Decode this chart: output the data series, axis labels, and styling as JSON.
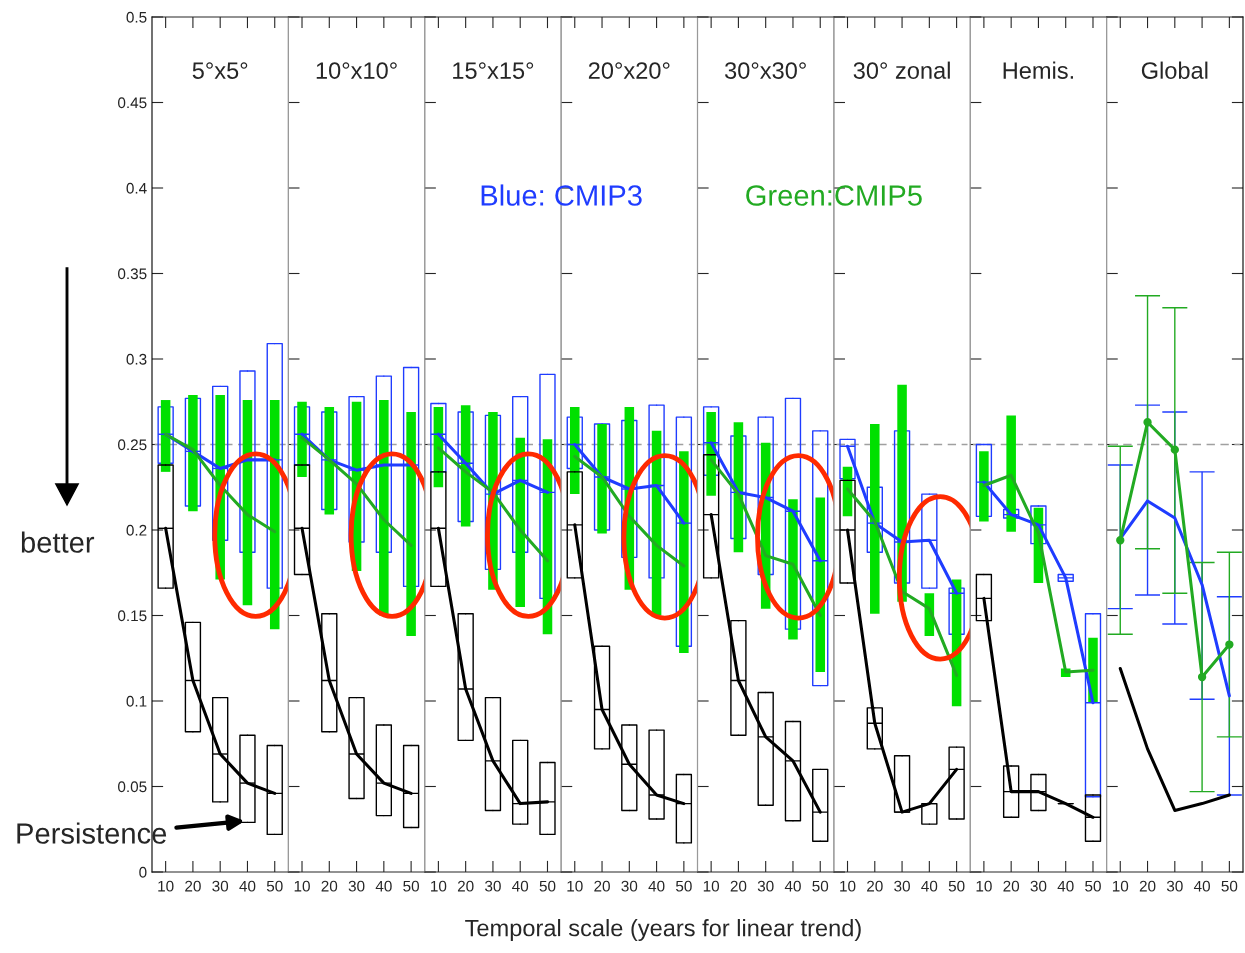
{
  "chart_data": [
    {
      "type": "box",
      "title": "5°x5°",
      "categories": [
        "10",
        "20",
        "30",
        "40",
        "50"
      ],
      "ylim": [
        0,
        0.5
      ],
      "yticks": [
        0,
        0.05,
        0.1,
        0.15,
        0.2,
        0.25,
        0.3,
        0.35,
        0.4,
        0.45,
        0.5
      ],
      "ref_lines": [
        {
          "axis": "y",
          "value": 0.25,
          "color": "#a0a0a0",
          "line_style": "dashed"
        }
      ],
      "annotations": [
        {
          "text": "Persistence",
          "x": "40",
          "y": 0.03
        },
        "better"
      ],
      "series": [
        {
          "type": "box",
          "color": "#1f3cff",
          "boxes": [
            {
              "low": 0.239,
              "q1": 0.239,
              "median": 0.256,
              "q3": 0.272,
              "high": 0.272
            },
            {
              "low": 0.214,
              "q1": 0.214,
              "median": 0.246,
              "q3": 0.277,
              "high": 0.277
            },
            {
              "low": 0.194,
              "q1": 0.194,
              "median": 0.236,
              "q3": 0.284,
              "high": 0.284
            },
            {
              "low": 0.187,
              "q1": 0.187,
              "median": 0.241,
              "q3": 0.293,
              "high": 0.293
            },
            {
              "low": 0.166,
              "q1": 0.166,
              "median": 0.241,
              "q3": 0.309,
              "high": 0.309
            }
          ]
        },
        {
          "type": "bar",
          "color": "#00e000",
          "base": [
            0.234,
            0.211,
            0.171,
            0.156,
            0.142
          ],
          "values": [
            0.042,
            0.068,
            0.108,
            0.12,
            0.134
          ]
        },
        {
          "type": "box",
          "color": "#000000",
          "boxes": [
            {
              "low": 0.166,
              "q1": 0.166,
              "median": 0.201,
              "q3": 0.238,
              "high": 0.238
            },
            {
              "low": 0.082,
              "q1": 0.082,
              "median": 0.112,
              "q3": 0.146,
              "high": 0.146
            },
            {
              "low": 0.041,
              "q1": 0.041,
              "median": 0.069,
              "q3": 0.102,
              "high": 0.102
            },
            {
              "low": 0.029,
              "q1": 0.029,
              "median": 0.052,
              "q3": 0.08,
              "high": 0.08
            },
            {
              "low": 0.022,
              "q1": 0.022,
              "median": 0.046,
              "q3": 0.074,
              "high": 0.074
            }
          ]
        },
        {
          "type": "line",
          "color": "#1f3cff",
          "values": [
            0.256,
            0.246,
            0.236,
            0.241,
            0.241
          ]
        },
        {
          "type": "line",
          "color": "#22aa22",
          "values": [
            0.256,
            0.247,
            0.226,
            0.209,
            0.199
          ]
        },
        {
          "type": "line",
          "color": "#000000",
          "values": [
            0.201,
            0.112,
            0.069,
            0.052,
            0.046
          ]
        }
      ]
    },
    {
      "type": "box",
      "title": "10°x10°",
      "categories": [
        "10",
        "20",
        "30",
        "40",
        "50"
      ],
      "ylim": [
        0,
        0.5
      ],
      "yticks": [
        0,
        0.05,
        0.1,
        0.15,
        0.2,
        0.25,
        0.3,
        0.35,
        0.4,
        0.45,
        0.5
      ],
      "tick_labels": "x",
      "ref_lines": [
        {
          "axis": "y",
          "value": 0.25,
          "color": "#a0a0a0",
          "line_style": "dashed"
        }
      ],
      "series": [
        {
          "type": "box",
          "color": "#1f3cff",
          "boxes": [
            {
              "low": 0.238,
              "q1": 0.238,
              "median": 0.256,
              "q3": 0.272,
              "high": 0.272
            },
            {
              "low": 0.212,
              "q1": 0.212,
              "median": 0.241,
              "q3": 0.269,
              "high": 0.269
            },
            {
              "low": 0.193,
              "q1": 0.193,
              "median": 0.235,
              "q3": 0.278,
              "high": 0.278
            },
            {
              "low": 0.187,
              "q1": 0.187,
              "median": 0.238,
              "q3": 0.29,
              "high": 0.29
            },
            {
              "low": 0.167,
              "q1": 0.167,
              "median": 0.238,
              "q3": 0.295,
              "high": 0.295
            }
          ]
        },
        {
          "type": "bar",
          "color": "#00e000",
          "base": [
            0.231,
            0.209,
            0.176,
            0.15,
            0.138
          ],
          "values": [
            0.044,
            0.063,
            0.099,
            0.126,
            0.131
          ]
        },
        {
          "type": "box",
          "color": "#000000",
          "boxes": [
            {
              "low": 0.174,
              "q1": 0.174,
              "median": 0.201,
              "q3": 0.238,
              "high": 0.238
            },
            {
              "low": 0.082,
              "q1": 0.082,
              "median": 0.112,
              "q3": 0.151,
              "high": 0.151
            },
            {
              "low": 0.043,
              "q1": 0.043,
              "median": 0.069,
              "q3": 0.102,
              "high": 0.102
            },
            {
              "low": 0.033,
              "q1": 0.033,
              "median": 0.052,
              "q3": 0.086,
              "high": 0.086
            },
            {
              "low": 0.026,
              "q1": 0.026,
              "median": 0.046,
              "q3": 0.074,
              "high": 0.074
            }
          ]
        },
        {
          "type": "line",
          "color": "#1f3cff",
          "values": [
            0.256,
            0.241,
            0.235,
            0.238,
            0.238
          ]
        },
        {
          "type": "line",
          "color": "#22aa22",
          "values": [
            0.254,
            0.241,
            0.227,
            0.206,
            0.191
          ]
        },
        {
          "type": "line",
          "color": "#000000",
          "values": [
            0.201,
            0.112,
            0.069,
            0.052,
            0.046
          ]
        }
      ]
    },
    {
      "type": "box",
      "title": "15°x15°",
      "categories": [
        "10",
        "20",
        "30",
        "40",
        "50"
      ],
      "ylim": [
        0,
        0.5
      ],
      "yticks": [
        0,
        0.05,
        0.1,
        0.15,
        0.2,
        0.25,
        0.3,
        0.35,
        0.4,
        0.45,
        0.5
      ],
      "tick_labels": "x",
      "ref_lines": [
        {
          "axis": "y",
          "value": 0.25,
          "color": "#a0a0a0",
          "line_style": "dashed"
        }
      ],
      "annotations": [
        "Blue: CMIP3"
      ],
      "series": [
        {
          "type": "box",
          "color": "#1f3cff",
          "boxes": [
            {
              "low": 0.234,
              "q1": 0.234,
              "median": 0.256,
              "q3": 0.274,
              "high": 0.274
            },
            {
              "low": 0.205,
              "q1": 0.205,
              "median": 0.239,
              "q3": 0.269,
              "high": 0.269
            },
            {
              "low": 0.177,
              "q1": 0.177,
              "median": 0.221,
              "q3": 0.267,
              "high": 0.267
            },
            {
              "low": 0.187,
              "q1": 0.187,
              "median": 0.229,
              "q3": 0.278,
              "high": 0.278
            },
            {
              "low": 0.16,
              "q1": 0.16,
              "median": 0.222,
              "q3": 0.291,
              "high": 0.291
            }
          ]
        },
        {
          "type": "bar",
          "color": "#00e000",
          "base": [
            0.225,
            0.202,
            0.165,
            0.155,
            0.139
          ],
          "values": [
            0.047,
            0.071,
            0.104,
            0.099,
            0.114
          ]
        },
        {
          "type": "box",
          "color": "#000000",
          "boxes": [
            {
              "low": 0.167,
              "q1": 0.167,
              "median": 0.201,
              "q3": 0.234,
              "high": 0.234
            },
            {
              "low": 0.077,
              "q1": 0.077,
              "median": 0.107,
              "q3": 0.151,
              "high": 0.151
            },
            {
              "low": 0.036,
              "q1": 0.036,
              "median": 0.065,
              "q3": 0.102,
              "high": 0.102
            },
            {
              "low": 0.028,
              "q1": 0.028,
              "median": 0.04,
              "q3": 0.077,
              "high": 0.077
            },
            {
              "low": 0.022,
              "q1": 0.022,
              "median": 0.041,
              "q3": 0.064,
              "high": 0.064
            }
          ]
        },
        {
          "type": "line",
          "color": "#1f3cff",
          "values": [
            0.256,
            0.239,
            0.221,
            0.229,
            0.222
          ]
        },
        {
          "type": "line",
          "color": "#22aa22",
          "values": [
            0.248,
            0.234,
            0.222,
            0.2,
            0.182
          ]
        },
        {
          "type": "line",
          "color": "#000000",
          "values": [
            0.201,
            0.107,
            0.065,
            0.04,
            0.041
          ]
        }
      ]
    },
    {
      "type": "box",
      "title": "20°x20°",
      "xlabel": "Temporal scale (years for linear trend)",
      "categories": [
        "10",
        "20",
        "30",
        "40",
        "50"
      ],
      "ylim": [
        0,
        0.5
      ],
      "yticks": [
        0,
        0.05,
        0.1,
        0.15,
        0.2,
        0.25,
        0.3,
        0.35,
        0.4,
        0.45,
        0.5
      ],
      "tick_labels": "x",
      "ref_lines": [
        {
          "axis": "y",
          "value": 0.25,
          "color": "#a0a0a0",
          "line_style": "dashed"
        }
      ],
      "series": [
        {
          "type": "box",
          "color": "#1f3cff",
          "boxes": [
            {
              "low": 0.236,
              "q1": 0.236,
              "median": 0.25,
              "q3": 0.266,
              "high": 0.266
            },
            {
              "low": 0.2,
              "q1": 0.2,
              "median": 0.231,
              "q3": 0.262,
              "high": 0.262
            },
            {
              "low": 0.184,
              "q1": 0.184,
              "median": 0.224,
              "q3": 0.264,
              "high": 0.264
            },
            {
              "low": 0.172,
              "q1": 0.172,
              "median": 0.226,
              "q3": 0.273,
              "high": 0.273
            },
            {
              "low": 0.132,
              "q1": 0.132,
              "median": 0.204,
              "q3": 0.266,
              "high": 0.266
            }
          ]
        },
        {
          "type": "bar",
          "color": "#00e000",
          "base": [
            0.221,
            0.198,
            0.165,
            0.15,
            0.128
          ],
          "values": [
            0.051,
            0.064,
            0.107,
            0.108,
            0.118
          ]
        },
        {
          "type": "box",
          "color": "#000000",
          "boxes": [
            {
              "low": 0.172,
              "q1": 0.172,
              "median": 0.203,
              "q3": 0.234,
              "high": 0.234
            },
            {
              "low": 0.072,
              "q1": 0.072,
              "median": 0.095,
              "q3": 0.132,
              "high": 0.132
            },
            {
              "low": 0.036,
              "q1": 0.036,
              "median": 0.063,
              "q3": 0.086,
              "high": 0.086
            },
            {
              "low": 0.031,
              "q1": 0.031,
              "median": 0.045,
              "q3": 0.083,
              "high": 0.083
            },
            {
              "low": 0.017,
              "q1": 0.017,
              "median": 0.04,
              "q3": 0.057,
              "high": 0.057
            }
          ]
        },
        {
          "type": "line",
          "color": "#1f3cff",
          "values": [
            0.25,
            0.231,
            0.224,
            0.226,
            0.204
          ]
        },
        {
          "type": "line",
          "color": "#22aa22",
          "values": [
            0.243,
            0.231,
            0.208,
            0.191,
            0.179
          ]
        },
        {
          "type": "line",
          "color": "#000000",
          "values": [
            0.203,
            0.095,
            0.063,
            0.045,
            0.04
          ]
        }
      ]
    },
    {
      "type": "box",
      "title": "30°x30°",
      "categories": [
        "10",
        "20",
        "30",
        "40",
        "50"
      ],
      "ylim": [
        0,
        0.5
      ],
      "yticks": [
        0,
        0.05,
        0.1,
        0.15,
        0.2,
        0.25,
        0.3,
        0.35,
        0.4,
        0.45,
        0.5
      ],
      "tick_labels": "x",
      "ref_lines": [
        {
          "axis": "y",
          "value": 0.25,
          "color": "#a0a0a0",
          "line_style": "dashed"
        }
      ],
      "series": [
        {
          "type": "box",
          "color": "#1f3cff",
          "boxes": [
            {
              "low": 0.232,
              "q1": 0.232,
              "median": 0.251,
              "q3": 0.272,
              "high": 0.272
            },
            {
              "low": 0.195,
              "q1": 0.195,
              "median": 0.222,
              "q3": 0.255,
              "high": 0.255
            },
            {
              "low": 0.174,
              "q1": 0.174,
              "median": 0.219,
              "q3": 0.266,
              "high": 0.266
            },
            {
              "low": 0.142,
              "q1": 0.142,
              "median": 0.211,
              "q3": 0.277,
              "high": 0.277
            },
            {
              "low": 0.109,
              "q1": 0.109,
              "median": 0.182,
              "q3": 0.258,
              "high": 0.258
            }
          ]
        },
        {
          "type": "bar",
          "color": "#00e000",
          "base": [
            0.22,
            0.187,
            0.154,
            0.136,
            0.117
          ],
          "values": [
            0.049,
            0.076,
            0.097,
            0.082,
            0.102
          ]
        },
        {
          "type": "box",
          "color": "#000000",
          "boxes": [
            {
              "low": 0.172,
              "q1": 0.172,
              "median": 0.209,
              "q3": 0.244,
              "high": 0.244
            },
            {
              "low": 0.08,
              "q1": 0.08,
              "median": 0.112,
              "q3": 0.147,
              "high": 0.147
            },
            {
              "low": 0.039,
              "q1": 0.039,
              "median": 0.079,
              "q3": 0.105,
              "high": 0.105
            },
            {
              "low": 0.03,
              "q1": 0.03,
              "median": 0.065,
              "q3": 0.088,
              "high": 0.088
            },
            {
              "low": 0.018,
              "q1": 0.018,
              "median": 0.035,
              "q3": 0.06,
              "high": 0.06
            }
          ]
        },
        {
          "type": "line",
          "color": "#1f3cff",
          "values": [
            0.251,
            0.222,
            0.219,
            0.211,
            0.182
          ]
        },
        {
          "type": "line",
          "color": "#22aa22",
          "values": [
            0.241,
            0.221,
            0.185,
            0.18,
            0.15
          ]
        },
        {
          "type": "line",
          "color": "#000000",
          "values": [
            0.209,
            0.112,
            0.079,
            0.065,
            0.035
          ]
        }
      ]
    },
    {
      "type": "box",
      "title": "30° zonal",
      "categories": [
        "10",
        "20",
        "30",
        "40",
        "50"
      ],
      "ylim": [
        0,
        0.5
      ],
      "yticks": [
        0,
        0.05,
        0.1,
        0.15,
        0.2,
        0.25,
        0.3,
        0.35,
        0.4,
        0.45,
        0.5
      ],
      "tick_labels": "x",
      "ref_lines": [
        {
          "axis": "y",
          "value": 0.25,
          "color": "#a0a0a0",
          "line_style": "dashed"
        }
      ],
      "annotations": [
        "Green:CMIP5"
      ],
      "series": [
        {
          "type": "box",
          "color": "#1f3cff",
          "boxes": [
            {
              "low": 0.23,
              "q1": 0.23,
              "median": 0.249,
              "q3": 0.253,
              "high": 0.253
            },
            {
              "low": 0.187,
              "q1": 0.187,
              "median": 0.204,
              "q3": 0.225,
              "high": 0.225
            },
            {
              "low": 0.169,
              "q1": 0.169,
              "median": 0.193,
              "q3": 0.258,
              "high": 0.258
            },
            {
              "low": 0.166,
              "q1": 0.166,
              "median": 0.194,
              "q3": 0.221,
              "high": 0.221
            },
            {
              "low": 0.139,
              "q1": 0.139,
              "median": 0.163,
              "q3": 0.166,
              "high": 0.166
            }
          ]
        },
        {
          "type": "bar",
          "color": "#00e000",
          "base": [
            0.208,
            0.151,
            0.158,
            0.138,
            0.097
          ],
          "values": [
            0.029,
            0.111,
            0.127,
            0.025,
            0.074
          ]
        },
        {
          "type": "box",
          "color": "#000000",
          "boxes": [
            {
              "low": 0.169,
              "q1": 0.169,
              "median": 0.2,
              "q3": 0.229,
              "high": 0.229
            },
            {
              "low": 0.072,
              "q1": 0.072,
              "median": 0.087,
              "q3": 0.096,
              "high": 0.096
            },
            {
              "low": 0.035,
              "q1": 0.035,
              "median": 0.035,
              "q3": 0.068,
              "high": 0.068
            },
            {
              "low": 0.028,
              "q1": 0.028,
              "median": 0.04,
              "q3": 0.04,
              "high": 0.04
            },
            {
              "low": 0.031,
              "q1": 0.031,
              "median": 0.06,
              "q3": 0.073,
              "high": 0.073
            }
          ]
        },
        {
          "type": "line",
          "color": "#1f3cff",
          "values": [
            0.249,
            0.204,
            0.193,
            0.194,
            0.163
          ]
        },
        {
          "type": "line",
          "color": "#22aa22",
          "values": [
            0.224,
            0.205,
            0.164,
            0.154,
            0.115
          ]
        },
        {
          "type": "line",
          "color": "#000000",
          "values": [
            0.2,
            0.087,
            0.035,
            0.04,
            0.06
          ]
        }
      ]
    },
    {
      "type": "box",
      "title": "Hemis.",
      "categories": [
        "10",
        "20",
        "30",
        "40",
        "50"
      ],
      "ylim": [
        0,
        0.5
      ],
      "yticks": [
        0,
        0.05,
        0.1,
        0.15,
        0.2,
        0.25,
        0.3,
        0.35,
        0.4,
        0.45,
        0.5
      ],
      "tick_labels": "x",
      "ref_lines": [
        {
          "axis": "y",
          "value": 0.25,
          "color": "#a0a0a0",
          "line_style": "dashed"
        }
      ],
      "series": [
        {
          "type": "box",
          "color": "#1f3cff",
          "boxes": [
            {
              "low": 0.208,
              "q1": 0.208,
              "median": 0.228,
              "q3": 0.25,
              "high": 0.25
            },
            {
              "low": 0.207,
              "q1": 0.207,
              "median": 0.209,
              "q3": 0.212,
              "high": 0.212
            },
            {
              "low": 0.192,
              "q1": 0.192,
              "median": 0.203,
              "q3": 0.214,
              "high": 0.214
            },
            {
              "low": 0.17,
              "q1": 0.17,
              "median": 0.172,
              "q3": 0.174,
              "high": 0.174
            },
            {
              "low": 0.044,
              "q1": 0.044,
              "median": 0.099,
              "q3": 0.151,
              "high": 0.151
            }
          ]
        },
        {
          "type": "bar",
          "color": "#00e000",
          "base": [
            0.205,
            0.199,
            0.169,
            0.114,
            0.099
          ],
          "values": [
            0.041,
            0.068,
            0.044,
            0.005,
            0.038
          ]
        },
        {
          "type": "box",
          "color": "#000000",
          "boxes": [
            {
              "low": 0.147,
              "q1": 0.147,
              "median": 0.16,
              "q3": 0.174,
              "high": 0.174
            },
            {
              "low": 0.032,
              "q1": 0.032,
              "median": 0.047,
              "q3": 0.062,
              "high": 0.062
            },
            {
              "low": 0.036,
              "q1": 0.036,
              "median": 0.047,
              "q3": 0.057,
              "high": 0.057
            },
            {
              "low": 0.04,
              "q1": 0.04,
              "median": 0.04,
              "q3": 0.04,
              "high": 0.04
            },
            {
              "low": 0.018,
              "q1": 0.018,
              "median": 0.032,
              "q3": 0.045,
              "high": 0.045
            }
          ]
        },
        {
          "type": "line",
          "color": "#1f3cff",
          "values": [
            0.228,
            0.209,
            0.203,
            0.172,
            0.099
          ]
        },
        {
          "type": "line",
          "color": "#22aa22",
          "values": [
            0.226,
            0.232,
            0.198,
            0.117,
            0.118
          ]
        },
        {
          "type": "line",
          "color": "#000000",
          "values": [
            0.16,
            0.047,
            0.047,
            0.04,
            0.032
          ]
        }
      ]
    },
    {
      "type": "line",
      "title": "Global",
      "categories": [
        "10",
        "20",
        "30",
        "40",
        "50"
      ],
      "ylim": [
        0,
        0.5
      ],
      "yticks": [
        0,
        0.05,
        0.1,
        0.15,
        0.2,
        0.25,
        0.3,
        0.35,
        0.4,
        0.45,
        0.5
      ],
      "tick_labels": "x",
      "ref_lines": [
        {
          "axis": "y",
          "value": 0.25,
          "color": "#a0a0a0",
          "line_style": "dashed"
        }
      ],
      "series": [
        {
          "type": "line",
          "color": "#1f3cff",
          "values": [
            0.195,
            0.217,
            0.207,
            0.168,
            0.103
          ],
          "errors": [
            [
              0.154,
              0.238
            ],
            [
              0.162,
              0.273
            ],
            [
              0.145,
              0.269
            ],
            [
              0.101,
              0.234
            ],
            [
              0.045,
              0.161
            ]
          ]
        },
        {
          "type": "line",
          "color": "#22aa22",
          "marker": "circle",
          "values": [
            0.194,
            0.263,
            0.247,
            0.114,
            0.133
          ],
          "errors": [
            [
              0.139,
              0.249
            ],
            [
              0.189,
              0.337
            ],
            [
              0.163,
              0.33
            ],
            [
              0.047,
              0.181
            ],
            [
              0.079,
              0.187
            ]
          ]
        },
        {
          "type": "line",
          "color": "#000000",
          "values": [
            0.119,
            0.072,
            0.036,
            0.04,
            0.045
          ]
        }
      ]
    }
  ]
}
